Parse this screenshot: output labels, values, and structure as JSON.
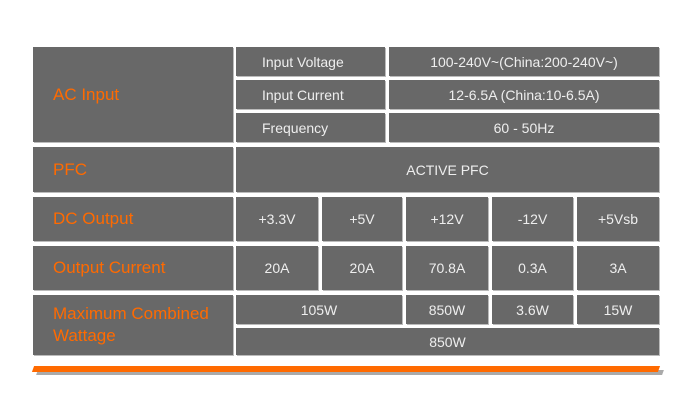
{
  "colors": {
    "accent": "#ff6a00",
    "cell": "#686868",
    "text": "#eeeeee"
  },
  "ac_input": {
    "label": "AC Input",
    "rows": [
      {
        "label": "Input Voltage",
        "value": "100-240V~(China:200-240V~)"
      },
      {
        "label": "Input Current",
        "value": "12-6.5A (China:10-6.5A)"
      },
      {
        "label": "Frequency",
        "value": "60 - 50Hz"
      }
    ]
  },
  "pfc": {
    "label": "PFC",
    "value": "ACTIVE PFC"
  },
  "dc_output": {
    "label": "DC Output",
    "values": [
      "+3.3V",
      "+5V",
      "+12V",
      "-12V",
      "+5Vsb"
    ]
  },
  "output_current": {
    "label": "Output Current",
    "values": [
      "20A",
      "20A",
      "70.8A",
      "0.3A",
      "3A"
    ]
  },
  "max_wattage": {
    "label": "Maximum Combined Wattage",
    "values": [
      "105W",
      "850W",
      "3.6W",
      "15W"
    ],
    "total": "850W"
  }
}
